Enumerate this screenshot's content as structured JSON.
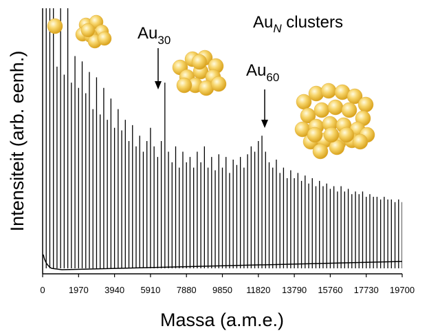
{
  "chart_data": {
    "type": "spectrum",
    "title": {
      "text": "Au",
      "sub": "N",
      "suffix": " clusters"
    },
    "xlabel": "Massa (a.m.e.)",
    "ylabel": "Intensiteit (arb. eenh.)",
    "annotations": [
      {
        "text": "Au",
        "sub": "30"
      },
      {
        "text": "Au",
        "sub": "60"
      }
    ],
    "xlim": [
      0,
      19700
    ],
    "xticks": [
      0,
      1970,
      3940,
      5910,
      7880,
      9850,
      11820,
      13790,
      15760,
      17730,
      19700
    ],
    "ylim": [
      0,
      100
    ],
    "color": "#000000",
    "x": [
      197,
      394,
      591,
      788,
      985,
      1182,
      1379,
      1576,
      1773,
      1970,
      2167,
      2364,
      2561,
      2758,
      2955,
      3152,
      3349,
      3546,
      3743,
      3940,
      4137,
      4334,
      4531,
      4728,
      4925,
      5122,
      5319,
      5516,
      5713,
      5910,
      6107,
      6304,
      6501,
      6698,
      6895,
      7092,
      7289,
      7486,
      7683,
      7880,
      8077,
      8274,
      8471,
      8668,
      8865,
      9062,
      9259,
      9456,
      9653,
      9850,
      10047,
      10244,
      10441,
      10638,
      10835,
      11032,
      11229,
      11426,
      11623,
      11820,
      12017,
      12214,
      12411,
      12608,
      12805,
      13002,
      13199,
      13396,
      13593,
      13790,
      13987,
      14184,
      14381,
      14578,
      14775,
      14972,
      15169,
      15366,
      15563,
      15760,
      15957,
      16154,
      16351,
      16548,
      16745,
      16942,
      17139,
      17336,
      17533,
      17730,
      17927,
      18124,
      18321,
      18518,
      18715,
      18912,
      19109,
      19306,
      19503,
      19700
    ],
    "values": [
      100,
      100,
      100,
      78,
      100,
      75,
      100,
      72,
      82,
      70,
      80,
      68,
      76,
      62,
      74,
      60,
      70,
      58,
      66,
      55,
      62,
      54,
      58,
      50,
      56,
      48,
      52,
      46,
      50,
      55,
      48,
      44,
      50,
      72,
      46,
      42,
      48,
      40,
      46,
      42,
      44,
      40,
      46,
      42,
      48,
      40,
      44,
      39,
      45,
      40,
      44,
      38,
      43,
      41,
      44,
      40,
      45,
      48,
      46,
      50,
      52,
      46,
      42,
      40,
      43,
      38,
      40,
      36,
      39,
      36,
      38,
      35,
      37,
      34,
      36,
      33,
      35,
      33,
      34,
      32,
      33,
      31,
      33,
      31,
      32,
      30,
      31,
      30,
      31,
      29,
      30,
      29,
      29,
      28,
      29,
      28,
      28,
      27,
      28,
      27
    ]
  }
}
